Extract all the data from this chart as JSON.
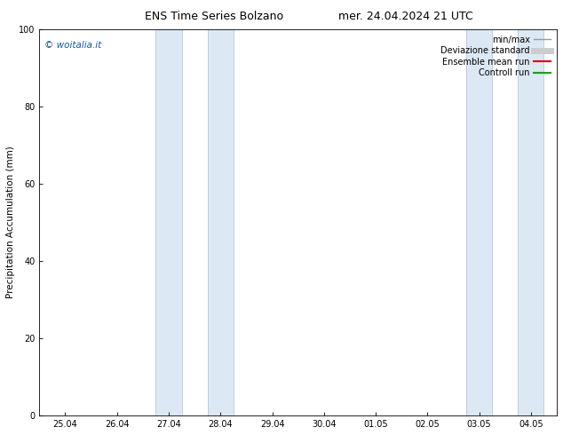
{
  "title_left": "ENS Time Series Bolzano",
  "title_right": "mer. 24.04.2024 21 UTC",
  "ylabel": "Precipitation Accumulation (mm)",
  "ylim": [
    0,
    100
  ],
  "yticks": [
    0,
    20,
    40,
    60,
    80,
    100
  ],
  "x_labels": [
    "25.04",
    "26.04",
    "27.04",
    "28.04",
    "29.04",
    "30.04",
    "01.05",
    "02.05",
    "03.05",
    "04.05"
  ],
  "x_values": [
    0,
    1,
    2,
    3,
    4,
    5,
    6,
    7,
    8,
    9
  ],
  "xlim": [
    -0.5,
    9.5
  ],
  "shaded_bands": [
    {
      "x_start": 1.75,
      "x_end": 2.25,
      "color": "#dce8f4"
    },
    {
      "x_start": 2.75,
      "x_end": 3.25,
      "color": "#dce8f4"
    },
    {
      "x_start": 7.75,
      "x_end": 8.25,
      "color": "#dce8f4"
    },
    {
      "x_start": 8.75,
      "x_end": 9.25,
      "color": "#dce8f4"
    }
  ],
  "band_edge_color": "#b0ccd8",
  "background_color": "#ffffff",
  "watermark": "© woitalia.it",
  "watermark_color": "#1155aa",
  "legend_items": [
    {
      "label": "min/max",
      "color": "#999999",
      "lw": 1.0
    },
    {
      "label": "Deviazione standard",
      "color": "#cccccc",
      "lw": 5.0
    },
    {
      "label": "Ensemble mean run",
      "color": "#dd0000",
      "lw": 1.5
    },
    {
      "label": "Controll run",
      "color": "#00aa00",
      "lw": 1.5
    }
  ],
  "title_fontsize": 9,
  "axis_fontsize": 7,
  "legend_fontsize": 7,
  "watermark_fontsize": 7.5,
  "ylabel_fontsize": 7.5
}
